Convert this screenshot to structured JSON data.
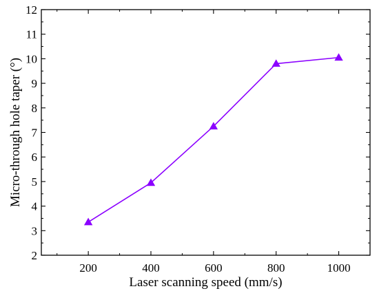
{
  "chart_data": {
    "type": "line",
    "title": "",
    "xlabel": "Laser scanning speed (mm/s)",
    "ylabel": "Micro-through hole taper (°)",
    "xlim": [
      50,
      1100
    ],
    "ylim": [
      2,
      12
    ],
    "xticks": [
      200,
      400,
      600,
      800,
      1000
    ],
    "yticks": [
      2,
      3,
      4,
      5,
      6,
      7,
      8,
      9,
      10,
      11,
      12
    ],
    "xtick_labels": [
      "200",
      "400",
      "600",
      "800",
      "1000"
    ],
    "ytick_labels": [
      "2",
      "3",
      "4",
      "5",
      "6",
      "7",
      "8",
      "9",
      "10",
      "11",
      "12"
    ],
    "grid": false,
    "legend": "none",
    "series": [
      {
        "x": [
          200,
          400,
          600,
          800,
          1000
        ],
        "y": [
          3.35,
          4.95,
          7.25,
          9.8,
          10.05
        ],
        "color": "#8B00FF",
        "marker": "triangle-up"
      }
    ]
  }
}
